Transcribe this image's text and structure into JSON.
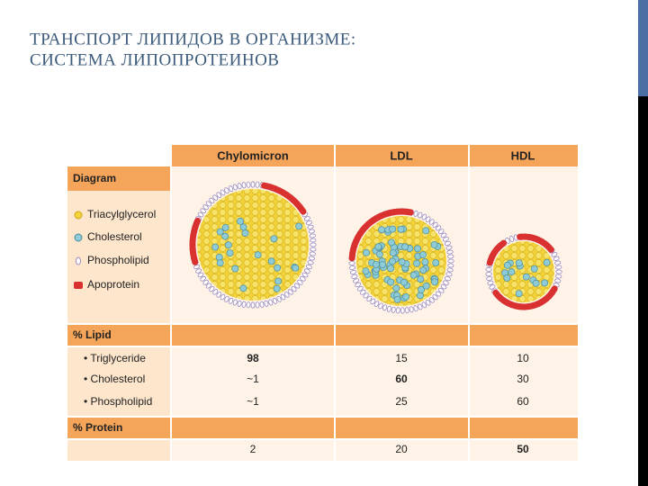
{
  "title": [
    "ТРАНСПОРТ ЛИПИДОВ В ОРГАНИЗМЕ:",
    "СИСТЕМА ЛИПОПРОТЕИНОВ"
  ],
  "table": {
    "columns": [
      "Chylomicron",
      "LDL",
      "HDL"
    ],
    "diagram": {
      "label": "Diagram",
      "legend": [
        "Triacylglycerol",
        "Cholesterol",
        "Phospholipid",
        "Apoprotein"
      ]
    },
    "lipid": {
      "label": "% Lipid",
      "rows": [
        {
          "name": "• Triglyceride",
          "values": [
            98,
            15,
            10
          ]
        },
        {
          "name": "• Cholesterol",
          "values": [
            "~1",
            60,
            30
          ]
        },
        {
          "name": "• Phospholipid",
          "values": [
            "~1",
            25,
            60
          ]
        }
      ]
    },
    "protein": {
      "label": "% Protein",
      "values": [
        2,
        20,
        50
      ]
    }
  }
}
